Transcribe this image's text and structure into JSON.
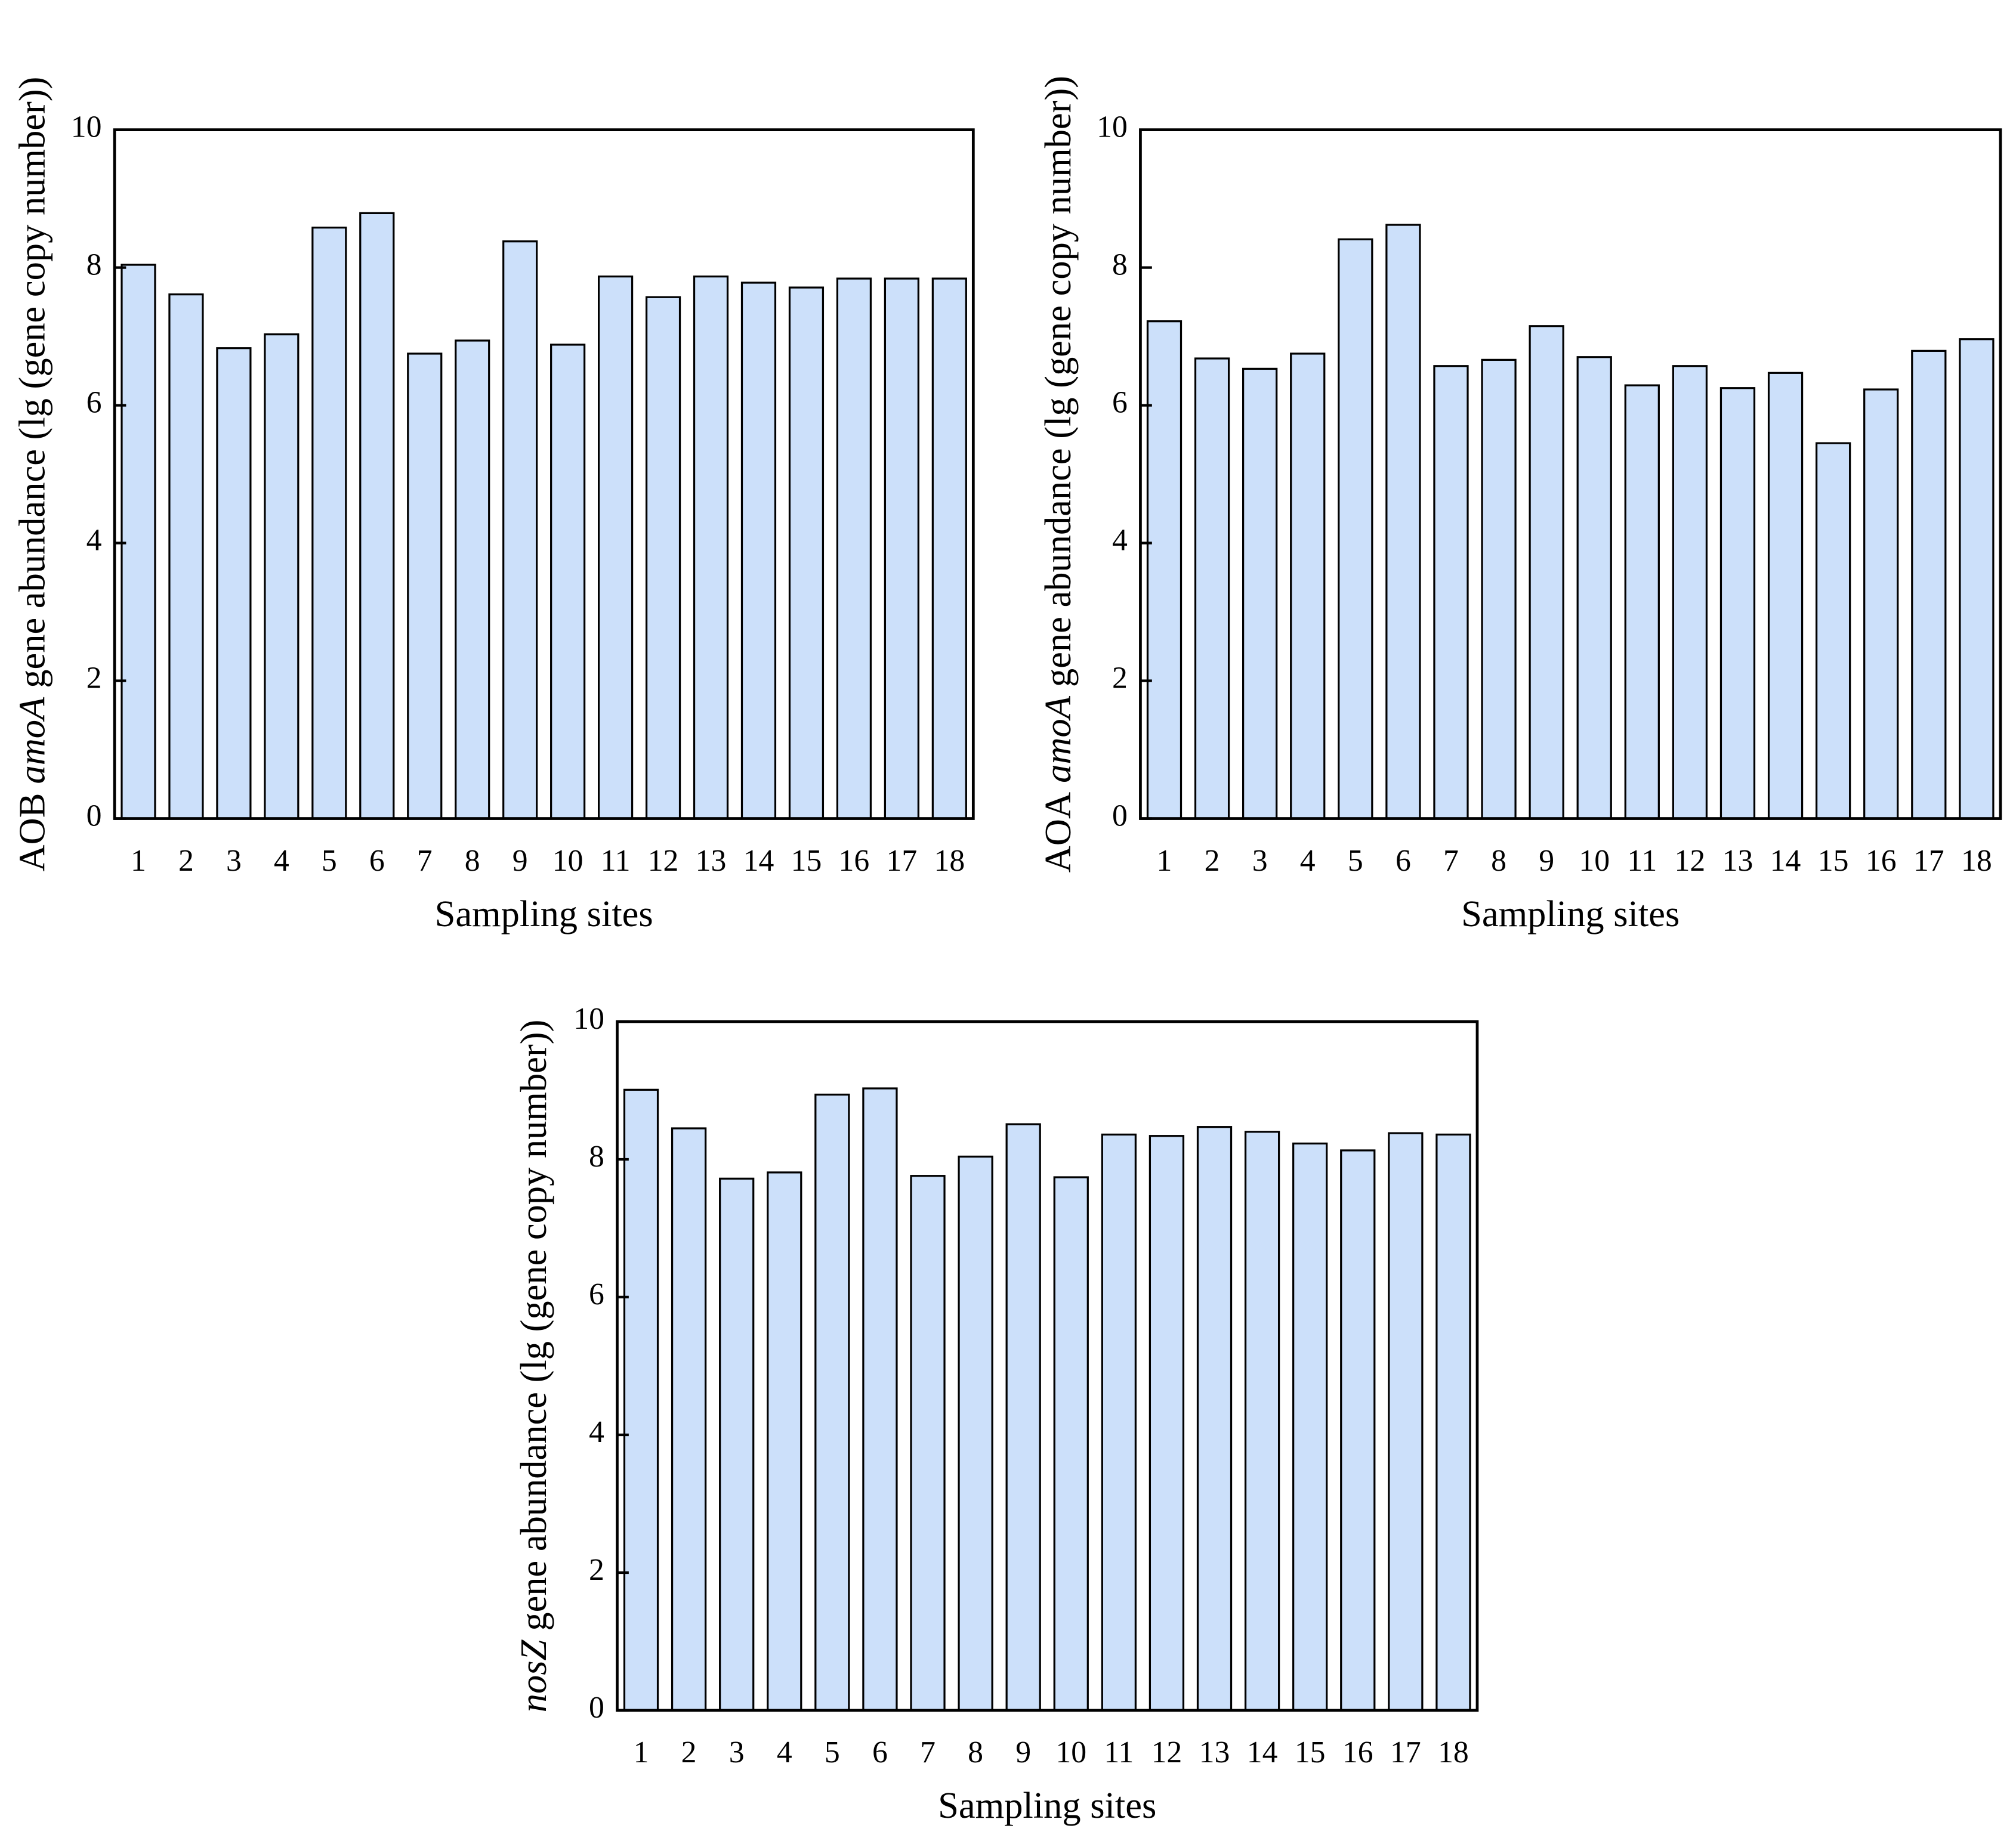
{
  "chart_data": [
    {
      "type": "bar",
      "ylabel": [
        {
          "text": "AOB"
        },
        {
          "text": "amoA",
          "italic": true
        },
        {
          "text": "gene abundance (lg (gene copy number))"
        }
      ],
      "xlabel": "Sampling sites",
      "categories": [
        "1",
        "2",
        "3",
        "4",
        "5",
        "6",
        "7",
        "8",
        "9",
        "10",
        "11",
        "12",
        "13",
        "14",
        "15",
        "16",
        "17",
        "18"
      ],
      "values": [
        8.04,
        7.61,
        6.83,
        7.03,
        8.58,
        8.79,
        6.75,
        6.94,
        8.38,
        6.88,
        7.87,
        7.57,
        7.87,
        7.78,
        7.71,
        7.84,
        7.84,
        7.84
      ],
      "color": "#cce0fa",
      "ylim": [
        0,
        10
      ],
      "yticks": [
        0,
        2,
        4,
        6,
        8,
        10
      ]
    },
    {
      "type": "bar",
      "ylabel": [
        {
          "text": "AOA"
        },
        {
          "text": "amoA",
          "italic": true
        },
        {
          "text": "gene abundance (lg (gene copy number))"
        }
      ],
      "xlabel": "Sampling sites",
      "categories": [
        "1",
        "2",
        "3",
        "4",
        "5",
        "6",
        "7",
        "8",
        "9",
        "10",
        "11",
        "12",
        "13",
        "14",
        "15",
        "16",
        "17",
        "18"
      ],
      "values": [
        7.22,
        6.68,
        6.53,
        6.75,
        8.41,
        8.62,
        6.57,
        6.66,
        7.15,
        6.7,
        6.29,
        6.57,
        6.25,
        6.47,
        5.45,
        6.23,
        6.79,
        6.96
      ],
      "color": "#cce0fa",
      "ylim": [
        0,
        10
      ],
      "yticks": [
        0,
        2,
        4,
        6,
        8,
        10
      ]
    },
    {
      "type": "bar",
      "ylabel": [
        {
          "text": "nosZ",
          "italic": true
        },
        {
          "text": "gene abundance (lg (gene copy number))"
        }
      ],
      "xlabel": "Sampling sites",
      "categories": [
        "1",
        "2",
        "3",
        "4",
        "5",
        "6",
        "7",
        "8",
        "9",
        "10",
        "11",
        "12",
        "13",
        "14",
        "15",
        "16",
        "17",
        "18"
      ],
      "values": [
        9.01,
        8.45,
        7.72,
        7.81,
        8.94,
        9.03,
        7.76,
        8.04,
        8.51,
        7.74,
        8.36,
        8.34,
        8.47,
        8.4,
        8.23,
        8.13,
        8.38,
        8.36
      ],
      "color": "#cce0fa",
      "ylim": [
        0,
        10
      ],
      "yticks": [
        0,
        2,
        4,
        6,
        8,
        10
      ]
    }
  ]
}
